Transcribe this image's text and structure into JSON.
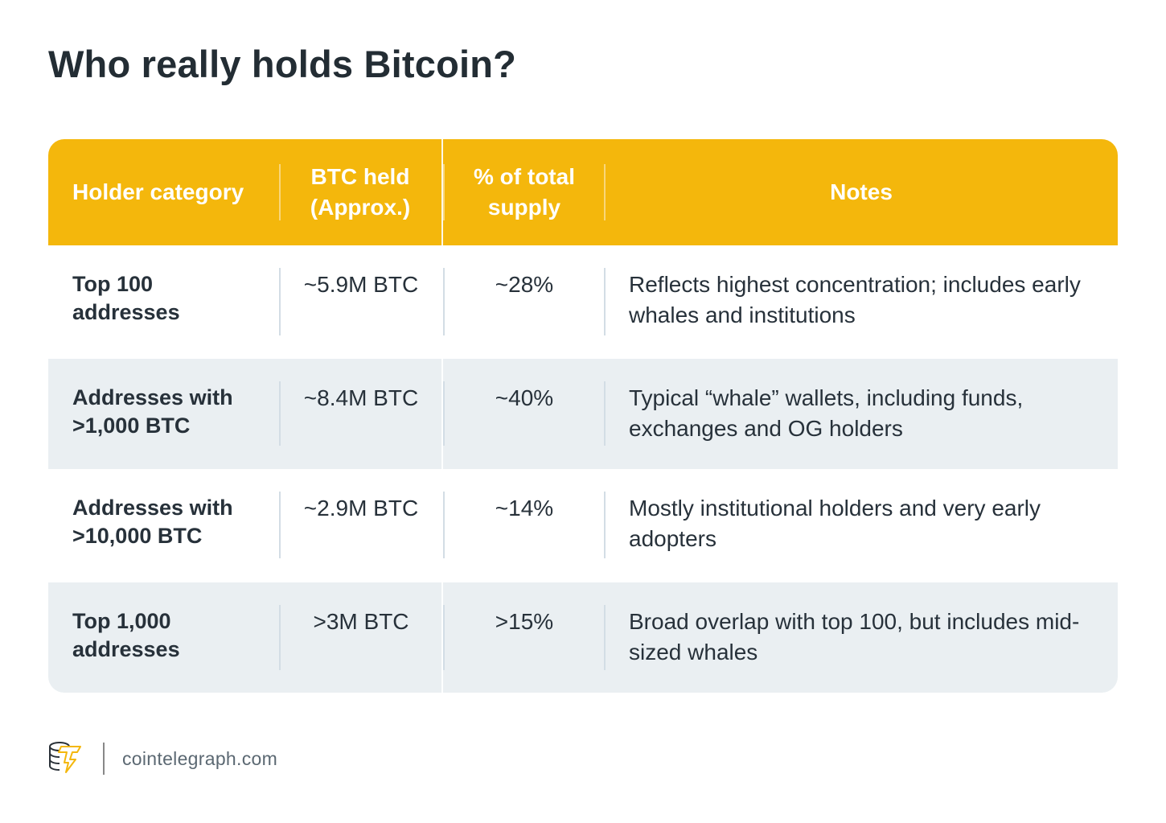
{
  "title": "Who really holds Bitcoin?",
  "colors": {
    "header": "#f4b70c",
    "alt_row": "#eaeff2",
    "text": "#27313a"
  },
  "table": {
    "headers": [
      "Holder category",
      "BTC held (Approx.)",
      "% of total supply",
      "Notes"
    ],
    "rows": [
      {
        "category": "Top 100 addresses",
        "btc": "~5.9M BTC",
        "pct": "~28%",
        "notes": "Reflects highest concentration; includes early whales and institutions"
      },
      {
        "category": "Addresses with >1,000 BTC",
        "btc": "~8.4M BTC",
        "pct": "~40%",
        "notes": "Typical “whale” wallets, including funds, exchanges and OG holders"
      },
      {
        "category": "Addresses with >10,000 BTC",
        "btc": "~2.9M BTC",
        "pct": "~14%",
        "notes": "Mostly institutional holders and very early adopters"
      },
      {
        "category": "Top 1,000 addresses",
        "btc": ">3M BTC",
        "pct": ">15%",
        "notes": "Broad overlap with top 100, but includes mid-sized whales"
      }
    ]
  },
  "footer": {
    "logo_icon": "cointelegraph-logo-icon",
    "site": "cointelegraph.com"
  }
}
